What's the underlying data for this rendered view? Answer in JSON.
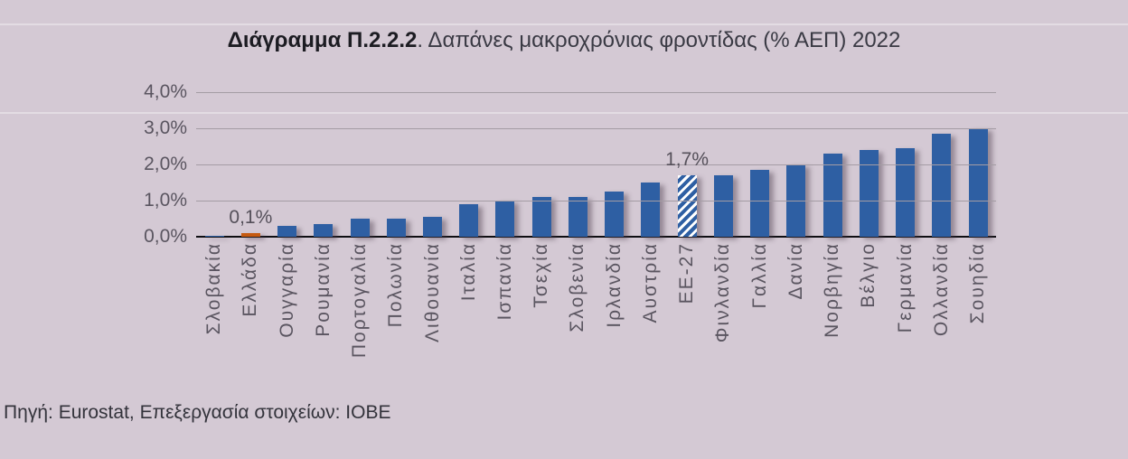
{
  "page": {
    "background": "#D4C9D4"
  },
  "title": {
    "prefix_bold": "Διάγραμμα Π.2.2.2",
    "separator": ". ",
    "rest": "Δαπάνες μακροχρόνιας φροντίδας (% ΑΕΠ) 2022"
  },
  "source": "Πηγή: Eurostat, Επεξεργασία στοιχείων: ΙΟΒΕ",
  "chart_data": {
    "type": "bar",
    "title": "Δαπάνες μακροχρόνιας φροντίδας (% ΑΕΠ) 2022",
    "xlabel": "",
    "ylabel": "% ΑΕΠ",
    "ylim": [
      0,
      4
    ],
    "grid": true,
    "ytick_labels": [
      "0,0%",
      "1,0%",
      "2,0%",
      "3,0%",
      "4,0%"
    ],
    "ytick_values": [
      0,
      1,
      2,
      3,
      4
    ],
    "categories": [
      "Σλοβακία",
      "Ελλάδα",
      "Ουγγαρία",
      "Ρουμανία",
      "Πορτογαλία",
      "Πολωνία",
      "Λιθουανία",
      "Ιταλία",
      "Ισπανία",
      "Τσεχία",
      "Σλοβενία",
      "Ιρλανδία",
      "Αυστρία",
      "ΕΕ-27",
      "Φινλανδία",
      "Γαλλία",
      "Δανία",
      "Νορβηγία",
      "Βέλγιο",
      "Γερμανία",
      "Ολλανδία",
      "Σουηδία"
    ],
    "values": [
      0.0,
      0.1,
      0.3,
      0.35,
      0.5,
      0.5,
      0.55,
      0.9,
      1.0,
      1.1,
      1.1,
      1.25,
      1.5,
      1.7,
      1.7,
      1.85,
      2.0,
      2.3,
      2.4,
      2.45,
      2.85,
      3.0
    ],
    "annotations": [
      {
        "index": 1,
        "category": "Ελλάδα",
        "label": "0,1%"
      },
      {
        "index": 13,
        "category": "ΕΕ-27",
        "label": "1,7%"
      }
    ],
    "highlight_index": 1,
    "hatched_index": 13,
    "colors": {
      "bar": "#2E5FA3",
      "highlight": "#C55A11",
      "hatch_stripe": "#2E5FA3",
      "hatch_background": "#FFFFFF",
      "gridline": "#A49CA4",
      "axis_line": "#0E0E12",
      "tick_text": "#5A5560"
    },
    "legend": null
  }
}
